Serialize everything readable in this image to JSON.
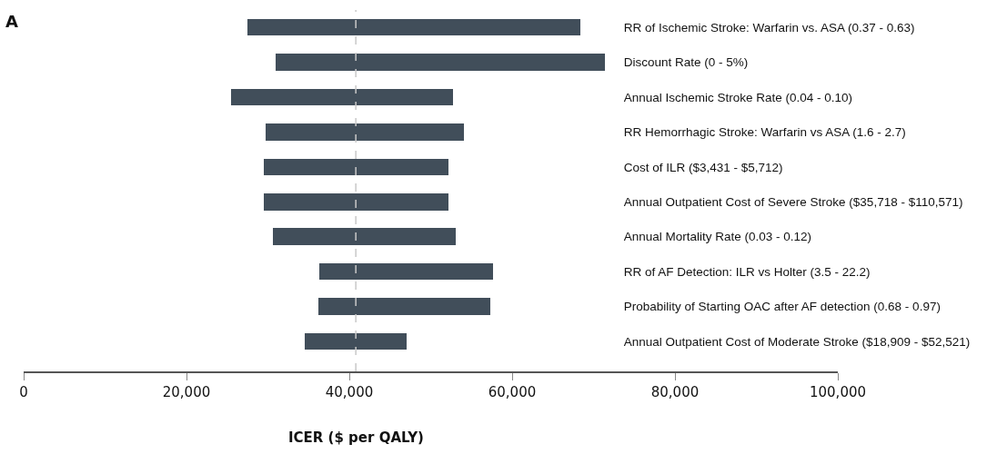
{
  "chart_data": {
    "type": "bar",
    "orientation": "horizontal",
    "title": "A",
    "xlabel": "ICER ($ per QALY)",
    "categories": [
      "RR of Ischemic Stroke: Warfarin vs. ASA (0.37 - 0.63)",
      "Discount Rate (0 - 5%)",
      "Annual Ischemic Stroke Rate (0.04 - 0.10)",
      "RR Hemorrhagic Stroke: Warfarin vs ASA (1.6 - 2.7)",
      "Cost of ILR ($3,431 - $5,712)",
      "Annual Outpatient Cost of Severe Stroke ($35,718 - $110,571)",
      "Annual Mortality Rate (0.03 - 0.12)",
      "RR of AF Detection: ILR vs Holter (3.5 - 22.2)",
      "Probability of Starting OAC after AF detection (0.68 - 0.97)",
      "Annual Outpatient Cost of Moderate Stroke ($18,909 - $52,521)"
    ],
    "base": [
      27500,
      31000,
      25500,
      29700,
      29500,
      29500,
      30600,
      36300,
      36200,
      34500
    ],
    "values": [
      40900,
      40400,
      27200,
      24400,
      22700,
      22700,
      22500,
      21400,
      21100,
      12500
    ],
    "color": "#414e5a",
    "xlim": [
      0,
      100000
    ],
    "xticks": [
      {
        "value": 0,
        "label": "0"
      },
      {
        "value": 20000,
        "label": "20,000"
      },
      {
        "value": 40000,
        "label": "40,000"
      },
      {
        "value": 60000,
        "label": "60,000"
      },
      {
        "value": 80000,
        "label": "80,000"
      },
      {
        "value": 100000,
        "label": "100,000"
      }
    ],
    "ref_lines": [
      {
        "axis": "x",
        "value": 40800,
        "label": null,
        "color": "#c8c8c8",
        "line_style": "dashed"
      }
    ]
  }
}
